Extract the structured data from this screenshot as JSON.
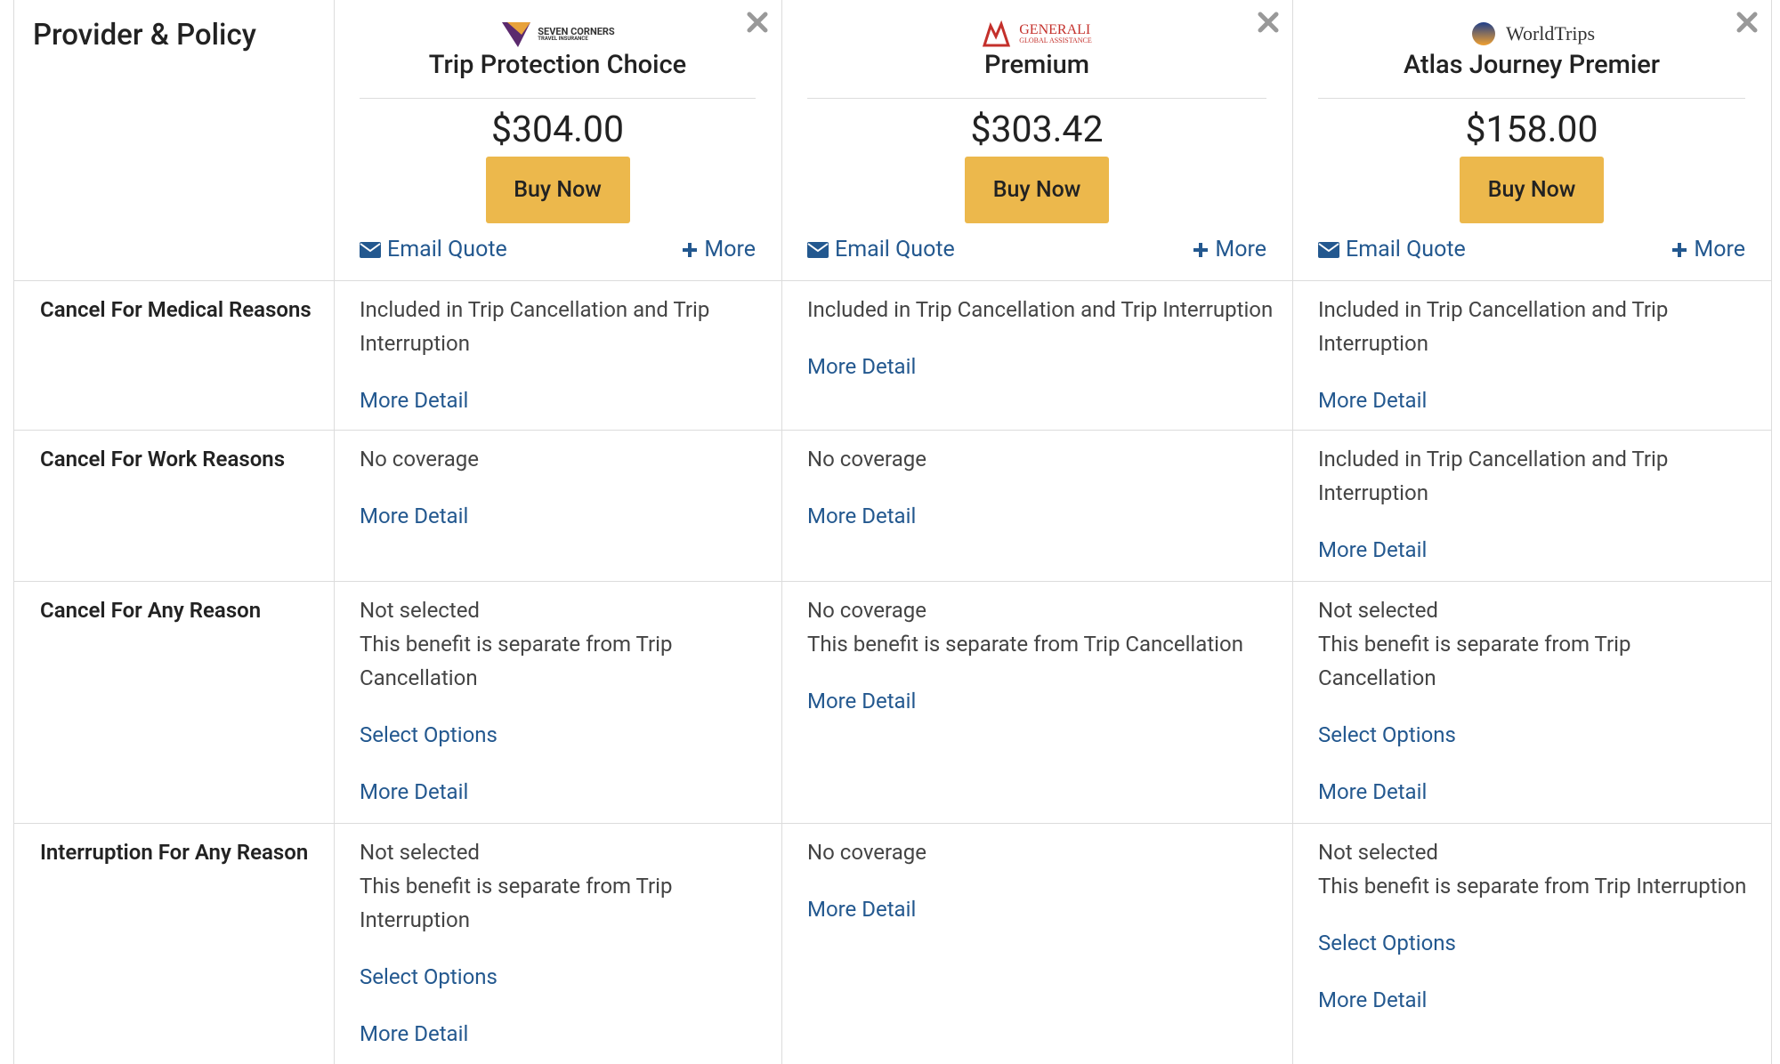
{
  "header_label": "Provider & Policy",
  "providers": [
    {
      "logo": [
        "SEVEN CORNERS",
        "TRAVEL INSURANCE"
      ],
      "plan": "Trip Protection Choice",
      "price": "$304.00",
      "buy": "Buy Now",
      "email": "Email Quote",
      "more": "More"
    },
    {
      "logo": [
        "GENERALI",
        "GLOBAL ASSISTANCE"
      ],
      "plan": "Premium",
      "price": "$303.42",
      "buy": "Buy Now",
      "email": "Email Quote",
      "more": "More"
    },
    {
      "logo": [
        "WorldTrips"
      ],
      "plan": "Atlas Journey Premier",
      "price": "$158.00",
      "buy": "Buy Now",
      "email": "Email Quote",
      "more": "More"
    }
  ],
  "rows": [
    {
      "label": "Cancel For Medical Reasons",
      "cells": [
        {
          "text": [
            "Included in Trip Cancellation and Trip Interruption"
          ],
          "links": [
            "More Detail"
          ]
        },
        {
          "text": [
            "Included in Trip Cancellation and Trip Interruption"
          ],
          "links": [
            "More Detail"
          ]
        },
        {
          "text": [
            "Included in Trip Cancellation and Trip Interruption"
          ],
          "links": [
            "More Detail"
          ]
        }
      ]
    },
    {
      "label": "Cancel For Work Reasons",
      "cells": [
        {
          "text": [
            "No coverage"
          ],
          "links": [
            "More Detail"
          ]
        },
        {
          "text": [
            "No coverage"
          ],
          "links": [
            "More Detail"
          ]
        },
        {
          "text": [
            "Included in Trip Cancellation and Trip Interruption"
          ],
          "links": [
            "More Detail"
          ]
        }
      ]
    },
    {
      "label": "Cancel For Any Reason",
      "cells": [
        {
          "text": [
            "Not selected",
            "This benefit is separate from Trip Cancellation"
          ],
          "links": [
            "Select Options",
            "More Detail"
          ]
        },
        {
          "text": [
            "No coverage",
            "This benefit is separate from Trip Cancellation"
          ],
          "links": [
            "More Detail"
          ]
        },
        {
          "text": [
            "Not selected",
            "This benefit is separate from Trip Cancellation"
          ],
          "links": [
            "Select Options",
            "More Detail"
          ]
        }
      ]
    },
    {
      "label": "Interruption For Any Reason",
      "cells": [
        {
          "text": [
            "Not selected",
            "This benefit is separate from Trip Interruption"
          ],
          "links": [
            "Select Options",
            "More Detail"
          ]
        },
        {
          "text": [
            "No coverage"
          ],
          "links": [
            "More Detail"
          ]
        },
        {
          "text": [
            "Not selected",
            "This benefit is separate from Trip Interruption"
          ],
          "links": [
            "Select Options",
            "More Detail"
          ]
        }
      ]
    }
  ]
}
